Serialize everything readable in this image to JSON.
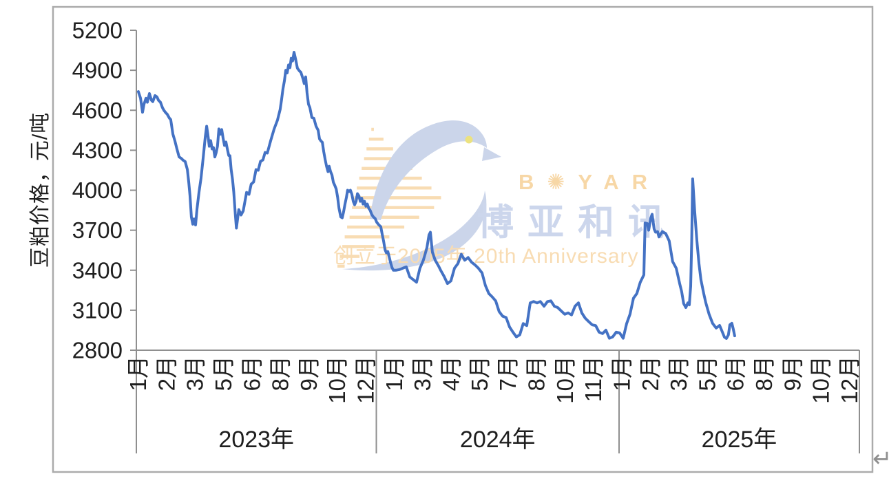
{
  "watermark": {
    "brand_latin": "B✺YAR",
    "brand_cjk": "博亚和讯",
    "anniversary": "创立于2005年 20th Anniversary",
    "colors": {
      "peach_text": "#f7d7a6",
      "periwinkle_text": "#ccd6ec",
      "bird_fill": "#cbd5ea",
      "stripe": "#f8dcb3",
      "eye_yellow": "#ece27f"
    }
  },
  "misc": {
    "return_mark": "↵"
  },
  "chart_data": {
    "type": "line",
    "title": "",
    "series_name": "豆粕价格",
    "ylabel": "豆粕价格，元/吨",
    "xlabel": "",
    "ylim": [
      2800,
      5200
    ],
    "yticks": [
      2800,
      3100,
      3400,
      3700,
      4000,
      4300,
      4600,
      4900,
      5200
    ],
    "grid": "off",
    "legend": "none",
    "line_color": "#4472C4",
    "axis_color": "#8f8f8f",
    "label_color": "#1f1f1f",
    "frame_color": "#ababab",
    "x_axis": {
      "months_span": 36,
      "sections": [
        {
          "year": "2023年",
          "months": [
            "1月",
            "2月",
            "3月",
            "5月",
            "6月",
            "8月",
            "9月",
            "10月",
            "12月"
          ]
        },
        {
          "year": "2024年",
          "months": [
            "1月",
            "3月",
            "4月",
            "5月",
            "7月",
            "8月",
            "10月",
            "11月"
          ]
        },
        {
          "year": "2025年",
          "months": [
            "1月",
            "2月",
            "3月",
            "5月",
            "6月",
            "8月",
            "9月",
            "10月",
            "12月"
          ]
        }
      ]
    },
    "points_format": "[months_since_2023_jan_start, price_yuan_per_ton]",
    "points": [
      [
        0.1,
        4740
      ],
      [
        0.21,
        4690
      ],
      [
        0.31,
        4585
      ],
      [
        0.38,
        4645
      ],
      [
        0.48,
        4690
      ],
      [
        0.55,
        4660
      ],
      [
        0.65,
        4725
      ],
      [
        0.75,
        4675
      ],
      [
        0.82,
        4665
      ],
      [
        0.93,
        4710
      ],
      [
        1.03,
        4700
      ],
      [
        1.1,
        4675
      ],
      [
        1.2,
        4660
      ],
      [
        1.3,
        4620
      ],
      [
        1.37,
        4600
      ],
      [
        1.47,
        4580
      ],
      [
        1.54,
        4570
      ],
      [
        1.65,
        4540
      ],
      [
        1.71,
        4530
      ],
      [
        1.82,
        4420
      ],
      [
        1.92,
        4370
      ],
      [
        2.02,
        4310
      ],
      [
        2.13,
        4250
      ],
      [
        2.23,
        4240
      ],
      [
        2.33,
        4225
      ],
      [
        2.43,
        4215
      ],
      [
        2.54,
        4155
      ],
      [
        2.61,
        4060
      ],
      [
        2.67,
        3960
      ],
      [
        2.74,
        3800
      ],
      [
        2.81,
        3745
      ],
      [
        2.88,
        3785
      ],
      [
        2.95,
        3740
      ],
      [
        3.02,
        3860
      ],
      [
        3.12,
        3985
      ],
      [
        3.22,
        4090
      ],
      [
        3.33,
        4245
      ],
      [
        3.43,
        4395
      ],
      [
        3.5,
        4480
      ],
      [
        3.56,
        4420
      ],
      [
        3.63,
        4330
      ],
      [
        3.7,
        4372
      ],
      [
        3.77,
        4310
      ],
      [
        3.84,
        4320
      ],
      [
        3.91,
        4250
      ],
      [
        3.97,
        4280
      ],
      [
        4.04,
        4330
      ],
      [
        4.11,
        4460
      ],
      [
        4.18,
        4420
      ],
      [
        4.25,
        4455
      ],
      [
        4.32,
        4390
      ],
      [
        4.39,
        4336
      ],
      [
        4.46,
        4362
      ],
      [
        4.53,
        4310
      ],
      [
        4.6,
        4260
      ],
      [
        4.66,
        4259
      ],
      [
        4.72,
        4155
      ],
      [
        4.79,
        4080
      ],
      [
        4.85,
        3984
      ],
      [
        4.93,
        3814
      ],
      [
        4.98,
        3716
      ],
      [
        5.1,
        3855
      ],
      [
        5.21,
        3814
      ],
      [
        5.32,
        3845
      ],
      [
        5.49,
        3984
      ],
      [
        5.61,
        3969
      ],
      [
        5.72,
        4046
      ],
      [
        5.84,
        4062
      ],
      [
        5.96,
        4155
      ],
      [
        6.07,
        4150
      ],
      [
        6.18,
        4217
      ],
      [
        6.3,
        4227
      ],
      [
        6.41,
        4284
      ],
      [
        6.52,
        4279
      ],
      [
        6.69,
        4372
      ],
      [
        6.86,
        4460
      ],
      [
        7.03,
        4527
      ],
      [
        7.16,
        4605
      ],
      [
        7.23,
        4680
      ],
      [
        7.3,
        4760
      ],
      [
        7.37,
        4820
      ],
      [
        7.44,
        4900
      ],
      [
        7.51,
        4880
      ],
      [
        7.58,
        4940
      ],
      [
        7.65,
        4920
      ],
      [
        7.71,
        4990
      ],
      [
        7.78,
        4970
      ],
      [
        7.85,
        5035
      ],
      [
        7.92,
        4990
      ],
      [
        8.02,
        4915
      ],
      [
        8.12,
        4895
      ],
      [
        8.19,
        4885
      ],
      [
        8.3,
        4835
      ],
      [
        8.36,
        4800
      ],
      [
        8.43,
        4850
      ],
      [
        8.5,
        4730
      ],
      [
        8.57,
        4645
      ],
      [
        8.64,
        4620
      ],
      [
        8.74,
        4545
      ],
      [
        8.84,
        4540
      ],
      [
        8.95,
        4480
      ],
      [
        9.05,
        4450
      ],
      [
        9.12,
        4385
      ],
      [
        9.19,
        4370
      ],
      [
        9.26,
        4360
      ],
      [
        9.33,
        4290
      ],
      [
        9.4,
        4230
      ],
      [
        9.47,
        4180
      ],
      [
        9.54,
        4140
      ],
      [
        9.6,
        4180
      ],
      [
        9.67,
        4140
      ],
      [
        9.74,
        4114
      ],
      [
        9.81,
        4060
      ],
      [
        9.88,
        4036
      ],
      [
        9.95,
        4010
      ],
      [
        10.02,
        3948
      ],
      [
        10.09,
        3865
      ],
      [
        10.18,
        3800
      ],
      [
        10.25,
        3793
      ],
      [
        10.32,
        3839
      ],
      [
        10.39,
        3896
      ],
      [
        10.46,
        3948
      ],
      [
        10.52,
        4000
      ],
      [
        10.59,
        3990
      ],
      [
        10.66,
        4000
      ],
      [
        10.73,
        3969
      ],
      [
        10.8,
        3917
      ],
      [
        10.87,
        3891
      ],
      [
        10.94,
        3917
      ],
      [
        11.01,
        3974
      ],
      [
        11.08,
        3958
      ],
      [
        11.15,
        3917
      ],
      [
        11.22,
        3940
      ],
      [
        11.29,
        3896
      ],
      [
        11.36,
        3917
      ],
      [
        11.43,
        3880
      ],
      [
        11.5,
        3896
      ],
      [
        11.57,
        3865
      ],
      [
        11.64,
        3850
      ],
      [
        11.72,
        3819
      ],
      [
        11.8,
        3800
      ],
      [
        11.89,
        3788
      ],
      [
        11.97,
        3760
      ],
      [
        12.07,
        3741
      ],
      [
        12.17,
        3726
      ],
      [
        12.24,
        3670
      ],
      [
        12.31,
        3620
      ],
      [
        12.38,
        3555
      ],
      [
        12.45,
        3530
      ],
      [
        12.52,
        3540
      ],
      [
        12.59,
        3500
      ],
      [
        12.66,
        3455
      ],
      [
        12.73,
        3420
      ],
      [
        12.8,
        3400
      ],
      [
        12.92,
        3400
      ],
      [
        13.1,
        3405
      ],
      [
        13.27,
        3415
      ],
      [
        13.44,
        3425
      ],
      [
        13.61,
        3350
      ],
      [
        13.78,
        3330
      ],
      [
        13.95,
        3310
      ],
      [
        14.12,
        3415
      ],
      [
        14.29,
        3475
      ],
      [
        14.47,
        3570
      ],
      [
        14.57,
        3665
      ],
      [
        14.64,
        3685
      ],
      [
        14.74,
        3535
      ],
      [
        14.88,
        3475
      ],
      [
        15.05,
        3430
      ],
      [
        15.15,
        3400
      ],
      [
        15.32,
        3355
      ],
      [
        15.49,
        3300
      ],
      [
        15.66,
        3320
      ],
      [
        15.84,
        3415
      ],
      [
        16.01,
        3450
      ],
      [
        16.18,
        3520
      ],
      [
        16.35,
        3475
      ],
      [
        16.52,
        3495
      ],
      [
        16.69,
        3460
      ],
      [
        16.86,
        3440
      ],
      [
        17.03,
        3415
      ],
      [
        17.21,
        3380
      ],
      [
        17.38,
        3285
      ],
      [
        17.55,
        3225
      ],
      [
        17.72,
        3200
      ],
      [
        17.89,
        3170
      ],
      [
        18.06,
        3090
      ],
      [
        18.24,
        3055
      ],
      [
        18.41,
        3045
      ],
      [
        18.58,
        2975
      ],
      [
        18.75,
        2935
      ],
      [
        18.92,
        2900
      ],
      [
        19.09,
        2915
      ],
      [
        19.26,
        3000
      ],
      [
        19.44,
        2985
      ],
      [
        19.61,
        3155
      ],
      [
        19.78,
        3165
      ],
      [
        19.95,
        3155
      ],
      [
        20.12,
        3165
      ],
      [
        20.3,
        3130
      ],
      [
        20.47,
        3165
      ],
      [
        20.64,
        3170
      ],
      [
        20.81,
        3130
      ],
      [
        20.98,
        3120
      ],
      [
        21.15,
        3095
      ],
      [
        21.33,
        3070
      ],
      [
        21.5,
        3080
      ],
      [
        21.67,
        3065
      ],
      [
        21.84,
        3130
      ],
      [
        22.01,
        3155
      ],
      [
        22.18,
        3080
      ],
      [
        22.35,
        3040
      ],
      [
        22.52,
        3015
      ],
      [
        22.7,
        2990
      ],
      [
        22.87,
        2985
      ],
      [
        23.04,
        2935
      ],
      [
        23.21,
        2925
      ],
      [
        23.38,
        2950
      ],
      [
        23.55,
        2890
      ],
      [
        23.72,
        2900
      ],
      [
        23.89,
        2935
      ],
      [
        24.06,
        2930
      ],
      [
        24.24,
        2890
      ],
      [
        24.41,
        3000
      ],
      [
        24.58,
        3070
      ],
      [
        24.75,
        3190
      ],
      [
        24.92,
        3225
      ],
      [
        25.09,
        3310
      ],
      [
        25.27,
        3365
      ],
      [
        25.33,
        3755
      ],
      [
        25.44,
        3750
      ],
      [
        25.51,
        3700
      ],
      [
        25.61,
        3790
      ],
      [
        25.68,
        3820
      ],
      [
        25.78,
        3710
      ],
      [
        25.85,
        3685
      ],
      [
        25.95,
        3690
      ],
      [
        26.02,
        3650
      ],
      [
        26.19,
        3690
      ],
      [
        26.36,
        3675
      ],
      [
        26.53,
        3620
      ],
      [
        26.7,
        3465
      ],
      [
        26.88,
        3415
      ],
      [
        27.05,
        3300
      ],
      [
        27.15,
        3240
      ],
      [
        27.25,
        3150
      ],
      [
        27.36,
        3120
      ],
      [
        27.46,
        3155
      ],
      [
        27.53,
        3140
      ],
      [
        27.6,
        3280
      ],
      [
        27.65,
        3620
      ],
      [
        27.68,
        3900
      ],
      [
        27.7,
        4085
      ],
      [
        27.8,
        3845
      ],
      [
        27.91,
        3622
      ],
      [
        28.01,
        3452
      ],
      [
        28.11,
        3328
      ],
      [
        28.25,
        3224
      ],
      [
        28.35,
        3157
      ],
      [
        28.52,
        3069
      ],
      [
        28.69,
        3002
      ],
      [
        28.87,
        2966
      ],
      [
        29.04,
        2986
      ],
      [
        29.14,
        2950
      ],
      [
        29.28,
        2898
      ],
      [
        29.38,
        2888
      ],
      [
        29.48,
        2915
      ],
      [
        29.55,
        2991
      ],
      [
        29.65,
        3002
      ],
      [
        29.72,
        2960
      ],
      [
        29.79,
        2908
      ]
    ]
  }
}
